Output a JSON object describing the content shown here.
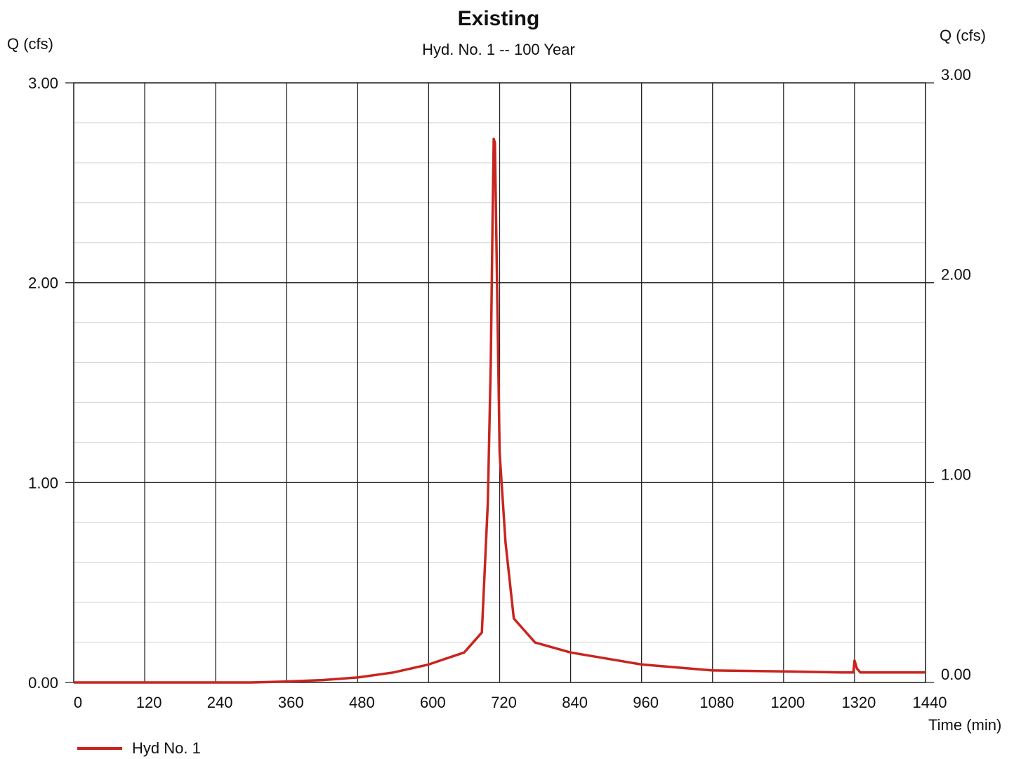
{
  "chart_data": {
    "type": "line",
    "title": "Existing",
    "subtitle": "Hyd. No. 1 -- 100 Year",
    "ylabel_left": "Q (cfs)",
    "ylabel_right": "Q (cfs)",
    "xlabel": "Time (min)",
    "xlim": [
      0,
      1440
    ],
    "ylim": [
      0,
      3
    ],
    "x_ticks": [
      0,
      120,
      240,
      360,
      480,
      600,
      720,
      840,
      960,
      1080,
      1200,
      1320,
      1440
    ],
    "y_ticks": [
      {
        "value": 0,
        "label": "0.00"
      },
      {
        "value": 1,
        "label": "1.00"
      },
      {
        "value": 2,
        "label": "2.00"
      },
      {
        "value": 3,
        "label": "3.00"
      }
    ],
    "grid": true,
    "minor_y_step": 0.2,
    "line_color": "#c8251f",
    "legend_position": "bottom-left",
    "series": [
      {
        "name": "Hyd No. 1",
        "x": [
          0,
          120,
          240,
          300,
          360,
          420,
          480,
          540,
          600,
          630,
          660,
          690,
          700,
          705,
          708,
          710,
          712,
          720,
          730,
          744,
          780,
          840,
          960,
          1080,
          1200,
          1300,
          1318,
          1320,
          1324,
          1330,
          1440
        ],
        "y": [
          0.0,
          0.0,
          0.0,
          0.0,
          0.005,
          0.012,
          0.025,
          0.05,
          0.09,
          0.12,
          0.15,
          0.25,
          0.9,
          1.6,
          2.3,
          2.72,
          2.7,
          1.15,
          0.7,
          0.32,
          0.2,
          0.15,
          0.09,
          0.06,
          0.055,
          0.05,
          0.05,
          0.11,
          0.07,
          0.05,
          0.05
        ]
      }
    ]
  }
}
